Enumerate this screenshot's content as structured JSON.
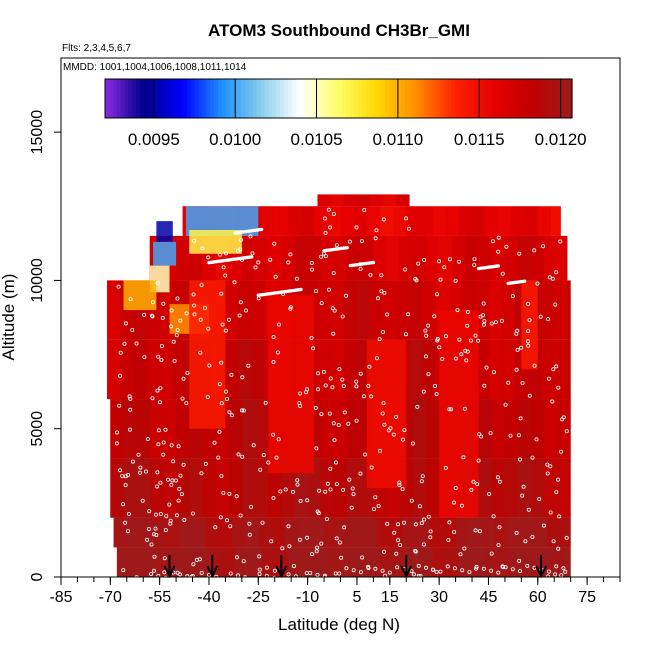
{
  "chart_data": {
    "type": "heatmap",
    "title": "ATOM3 Southbound CH3Br_GMI",
    "flights_label": "Flts: 2,3,4,5,6,7",
    "mmdd_label": "MMDD: 1001,1004,1006,1008,1011,1014",
    "xlabel": "Latitude (deg N)",
    "ylabel": "Altitude (m)",
    "xlim": [
      -85,
      85
    ],
    "ylim": [
      0,
      17500
    ],
    "x_ticks": [
      -85,
      -70,
      -55,
      -40,
      -25,
      -10,
      5,
      15,
      30,
      45,
      60,
      75
    ],
    "x_tick_labels": [
      "-85",
      "-70",
      "-55",
      "-40",
      "-25",
      "-10",
      "5",
      "15",
      "30",
      "45",
      "60",
      "75"
    ],
    "y_ticks": [
      0,
      5000,
      10000,
      15000
    ],
    "y_tick_labels": [
      "0",
      "5000",
      "10000",
      "15000"
    ],
    "colorbar": {
      "min": 0.0092,
      "max": 0.01207,
      "ticks": [
        0.0095,
        0.01,
        0.0105,
        0.011,
        0.0115,
        0.012
      ],
      "tick_labels": [
        "0.0095",
        "0.0100",
        "0.0105",
        "0.0110",
        "0.0115",
        "0.0120"
      ],
      "colors": [
        "#8a2be2",
        "#00008b",
        "#0000ff",
        "#1e90ff",
        "#87ceeb",
        "#ffffff",
        "#ffff66",
        "#ffd700",
        "#ff8c00",
        "#ff2000",
        "#e60000",
        "#c00000",
        "#9c1c1c"
      ]
    },
    "field": {
      "lat_min": -68,
      "lat_max": 70,
      "alt_bands": [
        {
          "alt0": 0,
          "alt1": 1000,
          "lat0": -68,
          "lat1": 70,
          "value": 0.01205
        },
        {
          "alt0": 1000,
          "alt1": 2000,
          "lat0": -69,
          "lat1": 70,
          "value": 0.012
        },
        {
          "alt0": 2000,
          "alt1": 4000,
          "lat0": -70,
          "lat1": 70,
          "value": 0.0119
        },
        {
          "alt0": 4000,
          "alt1": 6000,
          "lat0": -70,
          "lat1": 70,
          "value": 0.01185
        },
        {
          "alt0": 6000,
          "alt1": 8000,
          "lat0": -71,
          "lat1": 70,
          "value": 0.0118
        },
        {
          "alt0": 8000,
          "alt1": 10000,
          "lat0": -71,
          "lat1": 70,
          "value": 0.01175
        },
        {
          "alt0": 10000,
          "alt1": 11500,
          "lat0": -58,
          "lat1": 69,
          "value": 0.0117
        },
        {
          "alt0": 11500,
          "alt1": 12500,
          "lat0": -48,
          "lat1": 67,
          "value": 0.0116
        },
        {
          "alt0": 12500,
          "alt1": 12900,
          "lat0": -7,
          "lat1": 21,
          "value": 0.0117
        }
      ],
      "features": [
        {
          "lat0": -47,
          "lat1": -25,
          "alt0": 11500,
          "alt1": 12500,
          "value": 0.01
        },
        {
          "lat0": -46,
          "lat1": -30,
          "alt0": 10900,
          "alt1": 11700,
          "value": 0.0107
        },
        {
          "lat0": -56,
          "lat1": -51,
          "alt0": 11300,
          "alt1": 12000,
          "value": 0.0095
        },
        {
          "lat0": -57,
          "lat1": -50,
          "alt0": 10500,
          "alt1": 11300,
          "value": 0.01
        },
        {
          "lat0": -58,
          "lat1": -52,
          "alt0": 9600,
          "alt1": 10500,
          "value": 0.0105
        },
        {
          "lat0": -66,
          "lat1": -56,
          "alt0": 9000,
          "alt1": 10000,
          "value": 0.011
        },
        {
          "lat0": -52,
          "lat1": -40,
          "alt0": 8200,
          "alt1": 9200,
          "value": 0.0111
        },
        {
          "lat0": -46,
          "lat1": -35,
          "alt0": 5000,
          "alt1": 10000,
          "value": 0.0114
        },
        {
          "lat0": -22,
          "lat1": -8,
          "alt0": 3500,
          "alt1": 9500,
          "value": 0.01155
        },
        {
          "lat0": 8,
          "lat1": 20,
          "alt0": 3000,
          "alt1": 8000,
          "value": 0.0115
        },
        {
          "lat0": 30,
          "lat1": 42,
          "alt0": 2000,
          "alt1": 9000,
          "value": 0.01155
        },
        {
          "lat0": 55,
          "lat1": 60,
          "alt0": 7000,
          "alt1": 10000,
          "value": 0.0114
        }
      ],
      "flight_paths": [
        {
          "alt": 10600,
          "lat0": -40,
          "lat1": -27
        },
        {
          "alt": 11600,
          "lat0": -32,
          "lat1": -24
        },
        {
          "alt": 9500,
          "lat0": -25,
          "lat1": -12
        },
        {
          "alt": 11000,
          "lat0": -5,
          "lat1": 2
        },
        {
          "alt": 10500,
          "lat0": 3,
          "lat1": 10
        },
        {
          "alt": 10400,
          "lat0": 42,
          "lat1": 48
        },
        {
          "alt": 9900,
          "lat0": 51,
          "lat1": 56
        }
      ]
    },
    "profile_markers_lat": [
      -52,
      -39,
      -18,
      20,
      61
    ]
  }
}
